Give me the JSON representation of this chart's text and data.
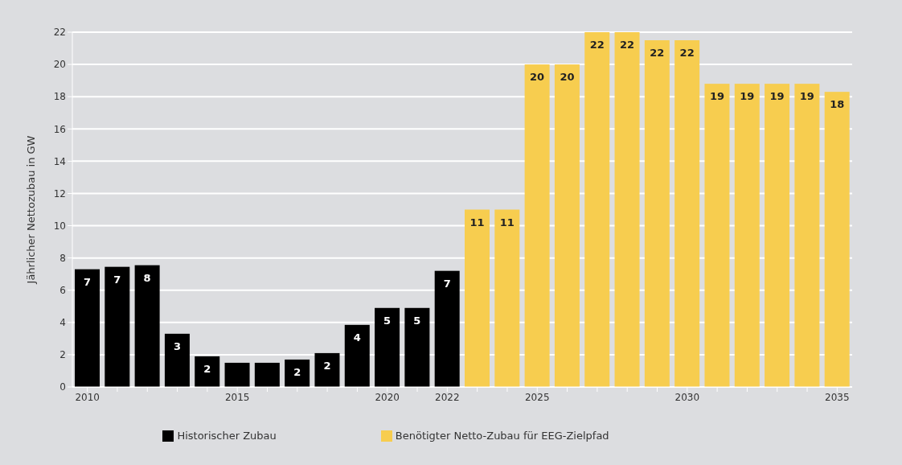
{
  "chart_data": {
    "type": "bar",
    "ylabel": "Jährlicher Nettozubau in GW",
    "categories": [
      "2010",
      null,
      null,
      null,
      null,
      "2015",
      null,
      null,
      null,
      null,
      "2020",
      null,
      "2022",
      null,
      null,
      "2025",
      null,
      null,
      null,
      null,
      "2030",
      null,
      null,
      null,
      null,
      "2035"
    ],
    "series": [
      {
        "name": "Historischer Zubau",
        "color": "#000000",
        "values": [
          7.3,
          7.45,
          7.55,
          3.3,
          1.9,
          1.5,
          1.5,
          1.7,
          2.1,
          3.85,
          4.9,
          4.9,
          7.2,
          null,
          null,
          null,
          null,
          null,
          null,
          null,
          null,
          null,
          null,
          null,
          null,
          null
        ],
        "value_labels": [
          "7",
          "7",
          "8",
          "3",
          "2",
          null,
          null,
          "2",
          "2",
          "4",
          "5",
          "5",
          "7",
          null,
          null,
          null,
          null,
          null,
          null,
          null,
          null,
          null,
          null,
          null,
          null,
          null
        ]
      },
      {
        "name": "Benötigter Netto-Zubau für EEG-Zielpfad",
        "color": "#f7cd4f",
        "values": [
          null,
          null,
          null,
          null,
          null,
          null,
          null,
          null,
          null,
          null,
          null,
          null,
          null,
          11,
          11,
          20,
          20,
          22,
          22,
          21.5,
          21.5,
          18.8,
          18.8,
          18.8,
          18.8,
          18.3
        ],
        "value_labels": [
          null,
          null,
          null,
          null,
          null,
          null,
          null,
          null,
          null,
          null,
          null,
          null,
          null,
          "11",
          "11",
          "20",
          "20",
          "22",
          "22",
          "22",
          "22",
          "19",
          "19",
          "19",
          "19",
          "18"
        ]
      }
    ],
    "ylim": [
      0,
      22
    ],
    "yticks": [
      0,
      2,
      4,
      6,
      8,
      10,
      12,
      14,
      16,
      18,
      20,
      22
    ],
    "grid": "y",
    "legend": "bottom"
  }
}
